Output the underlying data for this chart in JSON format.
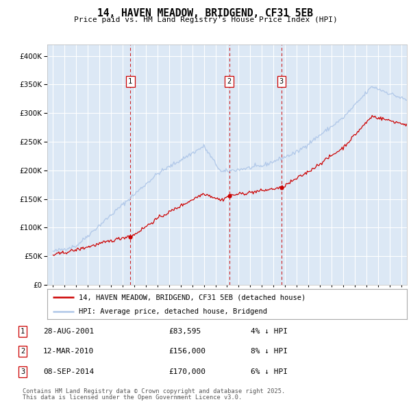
{
  "title": "14, HAVEN MEADOW, BRIDGEND, CF31 5EB",
  "subtitle": "Price paid vs. HM Land Registry's House Price Index (HPI)",
  "legend_line1": "14, HAVEN MEADOW, BRIDGEND, CF31 5EB (detached house)",
  "legend_line2": "HPI: Average price, detached house, Bridgend",
  "footer1": "Contains HM Land Registry data © Crown copyright and database right 2025.",
  "footer2": "This data is licensed under the Open Government Licence v3.0.",
  "sales": [
    {
      "num": 1,
      "date": "28-AUG-2001",
      "price": 83595,
      "pct": "4% ↓ HPI",
      "year": 2001.66
    },
    {
      "num": 2,
      "date": "12-MAR-2010",
      "price": 156000,
      "pct": "8% ↓ HPI",
      "year": 2010.19
    },
    {
      "num": 3,
      "date": "08-SEP-2014",
      "price": 170000,
      "pct": "6% ↓ HPI",
      "year": 2014.69
    }
  ],
  "ylim": [
    0,
    420000
  ],
  "xlim_start": 1994.5,
  "xlim_end": 2025.5,
  "hpi_color": "#aec6e8",
  "price_color": "#cc0000",
  "plot_bg": "#dce8f5",
  "grid_color": "#ffffff",
  "vline_color": "#cc0000"
}
